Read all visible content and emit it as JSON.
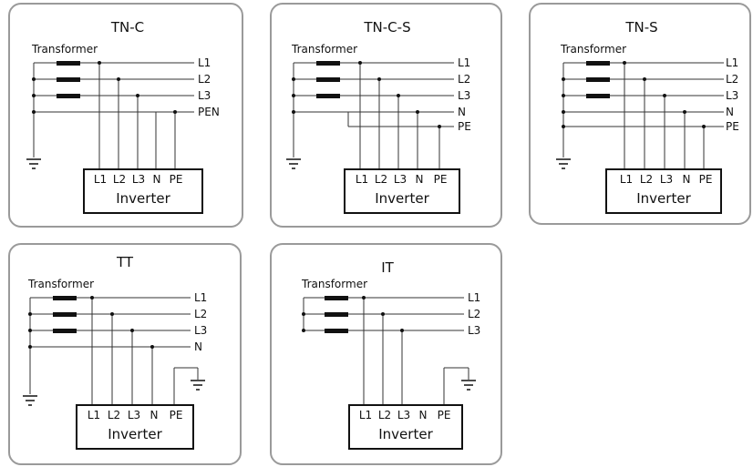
{
  "panels": [
    {
      "id": "tn-c",
      "title": "TN-C",
      "transformer": "Transformer",
      "lines": [
        "L1",
        "L2",
        "L3",
        "PEN"
      ],
      "terminals": [
        "L1",
        "L2",
        "L3",
        "N",
        "PE"
      ],
      "inverter": "Inverter"
    },
    {
      "id": "tn-c-s",
      "title": "TN-C-S",
      "transformer": "Transformer",
      "lines": [
        "L1",
        "L2",
        "L3",
        "N",
        "PE"
      ],
      "terminals": [
        "L1",
        "L2",
        "L3",
        "N",
        "PE"
      ],
      "inverter": "Inverter"
    },
    {
      "id": "tn-s",
      "title": "TN-S",
      "transformer": "Transformer",
      "lines": [
        "L1",
        "L2",
        "L3",
        "N",
        "PE"
      ],
      "terminals": [
        "L1",
        "L2",
        "L3",
        "N",
        "PE"
      ],
      "inverter": "Inverter"
    },
    {
      "id": "tt",
      "title": "TT",
      "transformer": "Transformer",
      "lines": [
        "L1",
        "L2",
        "L3",
        "N"
      ],
      "terminals": [
        "L1",
        "L2",
        "L3",
        "N",
        "PE"
      ],
      "inverter": "Inverter"
    },
    {
      "id": "it",
      "title": "IT",
      "transformer": "Transformer",
      "lines": [
        "L1",
        "L2",
        "L3"
      ],
      "terminals": [
        "L1",
        "L2",
        "L3",
        "N",
        "PE"
      ],
      "inverter": "Inverter"
    }
  ]
}
